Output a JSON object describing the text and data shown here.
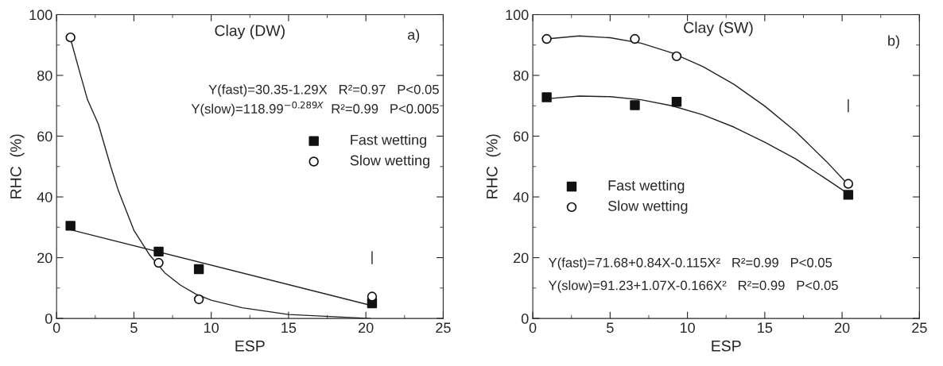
{
  "chart_data": [
    {
      "type": "scatter",
      "title": "Clay (DW)",
      "xlabel": "ESP",
      "ylabel": "RHC  (%)",
      "xlim": [
        0,
        25
      ],
      "xticks": [
        0,
        5,
        10,
        15,
        20,
        25
      ],
      "ylim": [
        0,
        100
      ],
      "yticks": [
        0,
        20,
        40,
        60,
        80,
        100
      ],
      "grid": false,
      "legend": "right",
      "annotations": [
        "a)",
        "Y(fast)=30.35-1.29X   R²=0.97   P<0.05",
        "Y(slow)=118.99$^{−0.289X}$  R²=0.99   P<0.005"
      ],
      "series": [
        {
          "name": "Fast wetting",
          "marker": "square",
          "color": "#111111",
          "x": [
            0.9,
            6.6,
            9.2,
            20.4
          ],
          "values": [
            30.5,
            22,
            16.2,
            5
          ]
        },
        {
          "name": "Slow wetting",
          "marker": "circle",
          "color": "#111111",
          "x": [
            0.9,
            6.6,
            9.2,
            20.4
          ],
          "values": [
            92.5,
            18.3,
            6.3,
            7.2
          ]
        },
        {
          "type": "line",
          "marker": "none",
          "color": "#222222",
          "x": [
            0.9,
            20.4
          ],
          "values": [
            29.2,
            4.2
          ]
        },
        {
          "type": "line",
          "marker": "none",
          "color": "#222222",
          "x": [
            0.9,
            1.5,
            2,
            2.7,
            3.5,
            4,
            5,
            6,
            7,
            8,
            9,
            10,
            12,
            15,
            20.3
          ],
          "values": [
            92,
            81,
            72,
            64,
            50,
            42,
            29,
            21,
            15,
            11,
            8,
            6,
            3.5,
            1.3,
            0
          ]
        },
        {
          "type": "line",
          "marker": "none",
          "color": "#222222",
          "x": [
            20.4,
            20.4
          ],
          "values": [
            18,
            22
          ]
        }
      ]
    },
    {
      "type": "scatter",
      "title": "Clay (SW)",
      "xlabel": "ESP",
      "ylabel": "RHC  (%)",
      "xlim": [
        0,
        25
      ],
      "xticks": [
        0,
        5,
        10,
        15,
        20,
        25
      ],
      "ylim": [
        0,
        100
      ],
      "yticks": [
        0,
        20,
        40,
        60,
        80,
        100
      ],
      "grid": false,
      "legend": "left",
      "annotations": [
        "b)",
        "Y(fast)=71.68+0.84X-0.115X²   R²=0.99   P<0.05",
        "Y(slow)=91.23+1.07X-0.166X²   R²=0.99   P<0.05"
      ],
      "series": [
        {
          "name": "Fast wetting",
          "marker": "square",
          "color": "#111111",
          "x": [
            0.9,
            6.6,
            9.3,
            20.4
          ],
          "values": [
            72.8,
            70.2,
            71.3,
            40.7
          ]
        },
        {
          "name": "Slow wetting",
          "marker": "circle",
          "color": "#111111",
          "x": [
            0.9,
            6.6,
            9.3,
            20.4
          ],
          "values": [
            92,
            92,
            86.3,
            44.3
          ]
        },
        {
          "type": "line",
          "marker": "none",
          "color": "#222222",
          "x": [
            0.9,
            3,
            5,
            7,
            9,
            11,
            13,
            15,
            17,
            19,
            20.4
          ],
          "values": [
            72.3,
            73.2,
            73.0,
            72.0,
            70.0,
            67.0,
            63.0,
            58.0,
            52.5,
            45.8,
            41.0
          ]
        },
        {
          "type": "line",
          "marker": "none",
          "color": "#222222",
          "x": [
            0.9,
            3,
            5,
            7,
            9,
            11,
            13,
            15,
            17,
            19,
            20.4
          ],
          "values": [
            92.0,
            93.0,
            92.4,
            90.6,
            87.4,
            82.9,
            77.1,
            69.9,
            61.5,
            51.6,
            44.0
          ]
        },
        {
          "type": "line",
          "marker": "none",
          "color": "#222222",
          "x": [
            20.4,
            20.4
          ],
          "values": [
            68,
            72
          ]
        }
      ]
    }
  ]
}
